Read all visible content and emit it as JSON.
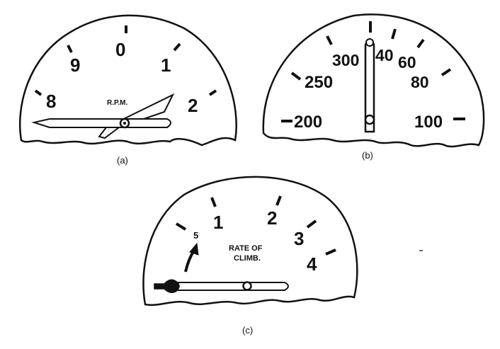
{
  "gauges": [
    {
      "caption": "(a)",
      "title": "R.P.M.",
      "scale": [
        "8",
        "9",
        "0",
        "1",
        "2"
      ]
    },
    {
      "caption": "(b)",
      "scale": [
        "200",
        "250",
        "300",
        "40",
        "60",
        "80",
        "100"
      ]
    },
    {
      "caption": "(c)",
      "title_line1": "RATE OF",
      "title_line2": "CLIMB.",
      "scale": [
        "5",
        "1",
        "2",
        "3",
        "4"
      ]
    }
  ]
}
